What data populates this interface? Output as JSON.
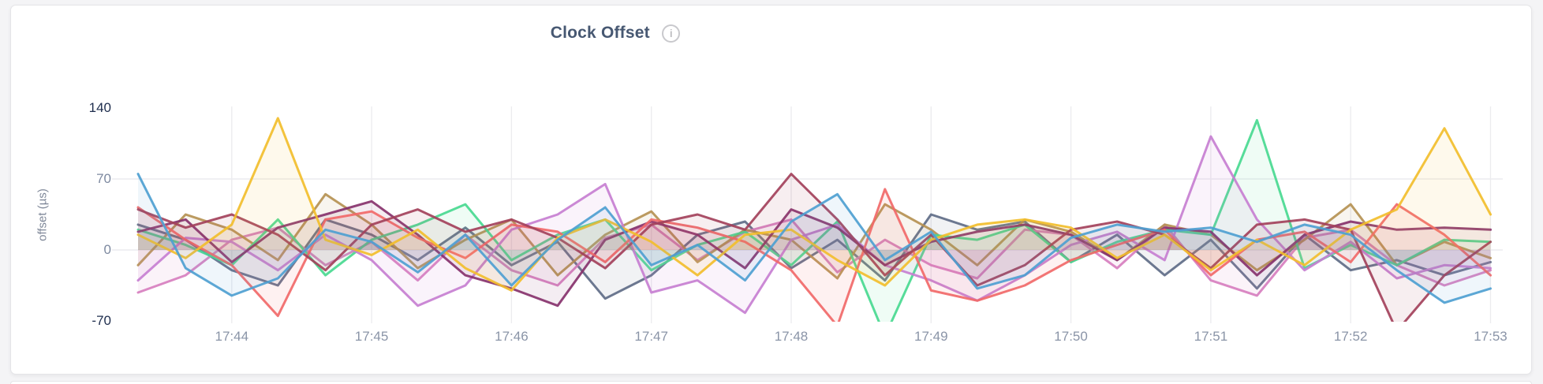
{
  "page": {
    "background_color": "#f4f4f6"
  },
  "card": {
    "background_color": "#ffffff",
    "border_color": "#e5e5e8"
  },
  "header": {
    "title": "Clock Offset",
    "title_color": "#475872",
    "info_icon_glyph": "i"
  },
  "chart": {
    "grid_color": "#ececef",
    "x_label_color": "#8a94a7",
    "axis_label_color_muted": "#7d89a0",
    "axis_label_color_strong": "#1e2d4d",
    "y_axis": {
      "title": "offset (µs)",
      "ticks": [
        {
          "value": 140,
          "label": "140",
          "emphasized": true
        },
        {
          "value": 70,
          "label": "70",
          "emphasized": false
        },
        {
          "value": 0,
          "label": "0",
          "emphasized": false
        },
        {
          "value": -70,
          "label": "-70",
          "emphasized": true
        }
      ]
    },
    "x_axis": {
      "ticks": [
        {
          "minute": 44,
          "label": "17:44"
        },
        {
          "minute": 45,
          "label": "17:45"
        },
        {
          "minute": 46,
          "label": "17:46"
        },
        {
          "minute": 47,
          "label": "17:47"
        },
        {
          "minute": 48,
          "label": "17:48"
        },
        {
          "minute": 49,
          "label": "17:49"
        },
        {
          "minute": 50,
          "label": "17:50"
        },
        {
          "minute": 51,
          "label": "17:51"
        },
        {
          "minute": 52,
          "label": "17:52"
        },
        {
          "minute": 53,
          "label": "17:53"
        }
      ]
    }
  },
  "chart_data": {
    "type": "line",
    "title": "Clock Offset",
    "xlabel": "",
    "ylabel": "offset (µs)",
    "ylim": [
      -70,
      140
    ],
    "y_ticks": [
      -70,
      0,
      70,
      140
    ],
    "x_tick_labels": [
      "17:44",
      "17:45",
      "17:46",
      "17:47",
      "17:48",
      "17:49",
      "17:50",
      "17:51",
      "17:52",
      "17:53"
    ],
    "x_tick_minutes": [
      44,
      45,
      46,
      47,
      48,
      49,
      50,
      51,
      52,
      53
    ],
    "grid": true,
    "legend": false,
    "area_fill_to_zero": true,
    "x_minutes": [
      43.33,
      43.67,
      44.0,
      44.33,
      44.67,
      45.0,
      45.33,
      45.67,
      46.0,
      46.33,
      46.67,
      47.0,
      47.33,
      47.67,
      48.0,
      48.33,
      48.67,
      49.0,
      49.33,
      49.67,
      50.0,
      50.33,
      50.67,
      51.0,
      51.33,
      51.67,
      52.0,
      52.33,
      52.67,
      53.0
    ],
    "series": [
      {
        "name": "series-1",
        "color": "#5F6C87",
        "values": [
          25,
          10,
          -20,
          -35,
          30,
          15,
          -10,
          22,
          -15,
          8,
          -48,
          -25,
          15,
          28,
          -18,
          10,
          -30,
          35,
          20,
          28,
          -12,
          15,
          -25,
          10,
          -38,
          15,
          -20,
          -10,
          -25,
          -12
        ]
      },
      {
        "name": "series-2",
        "color": "#D77FBF",
        "values": [
          -42,
          -25,
          10,
          22,
          -15,
          8,
          -30,
          15,
          -20,
          -35,
          12,
          25,
          -10,
          18,
          30,
          -22,
          10,
          -15,
          -28,
          20,
          15,
          -18,
          25,
          -30,
          -45,
          12,
          20,
          -15,
          -35,
          -20
        ]
      },
      {
        "name": "series-3",
        "color": "#B59153",
        "values": [
          -15,
          35,
          20,
          -10,
          55,
          25,
          -18,
          10,
          30,
          -25,
          15,
          38,
          -12,
          20,
          10,
          -28,
          45,
          20,
          -15,
          30,
          18,
          -10,
          25,
          15,
          -20,
          10,
          45,
          -15,
          8,
          -8
        ]
      },
      {
        "name": "series-4",
        "color": "#49D990",
        "values": [
          20,
          5,
          -15,
          30,
          -25,
          10,
          25,
          45,
          -10,
          15,
          30,
          -20,
          5,
          18,
          -15,
          28,
          -85,
          15,
          10,
          25,
          -12,
          8,
          20,
          15,
          128,
          -18,
          5,
          -15,
          10,
          8
        ]
      },
      {
        "name": "series-5",
        "color": "#C77FD1",
        "values": [
          -30,
          12,
          8,
          -20,
          15,
          -10,
          -55,
          -35,
          20,
          35,
          65,
          -42,
          -30,
          -62,
          10,
          25,
          -15,
          -30,
          -50,
          -25,
          5,
          18,
          -10,
          112,
          30,
          -20,
          8,
          -28,
          -15,
          -18
        ]
      },
      {
        "name": "series-6",
        "color": "#87326D",
        "values": [
          18,
          30,
          -12,
          22,
          35,
          48,
          15,
          -25,
          -38,
          -55,
          10,
          28,
          15,
          -18,
          40,
          22,
          -15,
          8,
          18,
          25,
          15,
          -10,
          22,
          18,
          -25,
          15,
          28,
          20,
          22,
          20
        ]
      },
      {
        "name": "series-7",
        "color": "#F16969",
        "values": [
          42,
          10,
          -15,
          -65,
          30,
          38,
          12,
          -8,
          25,
          18,
          -12,
          30,
          22,
          8,
          -20,
          -75,
          60,
          -40,
          -50,
          -35,
          -10,
          5,
          20,
          -25,
          10,
          18,
          -12,
          45,
          15,
          -25
        ]
      },
      {
        "name": "series-8",
        "color": "#A3415B",
        "values": [
          40,
          22,
          35,
          15,
          -20,
          25,
          40,
          18,
          30,
          12,
          -18,
          25,
          35,
          20,
          75,
          30,
          -25,
          15,
          -35,
          -15,
          20,
          28,
          15,
          -18,
          25,
          30,
          20,
          -80,
          -25,
          8
        ]
      },
      {
        "name": "series-9",
        "color": "#F2BE2C",
        "values": [
          15,
          -8,
          25,
          130,
          10,
          -5,
          20,
          -18,
          -40,
          12,
          30,
          8,
          -25,
          15,
          20,
          -10,
          -35,
          10,
          25,
          30,
          22,
          -8,
          15,
          -20,
          10,
          -15,
          20,
          40,
          120,
          35
        ]
      },
      {
        "name": "series-10",
        "color": "#4E9FD1",
        "values": [
          75,
          -18,
          -45,
          -28,
          20,
          8,
          -22,
          15,
          -35,
          10,
          42,
          -15,
          5,
          -30,
          28,
          55,
          -10,
          18,
          -38,
          -25,
          12,
          25,
          18,
          22,
          8,
          25,
          15,
          -20,
          -52,
          -38
        ]
      }
    ]
  }
}
